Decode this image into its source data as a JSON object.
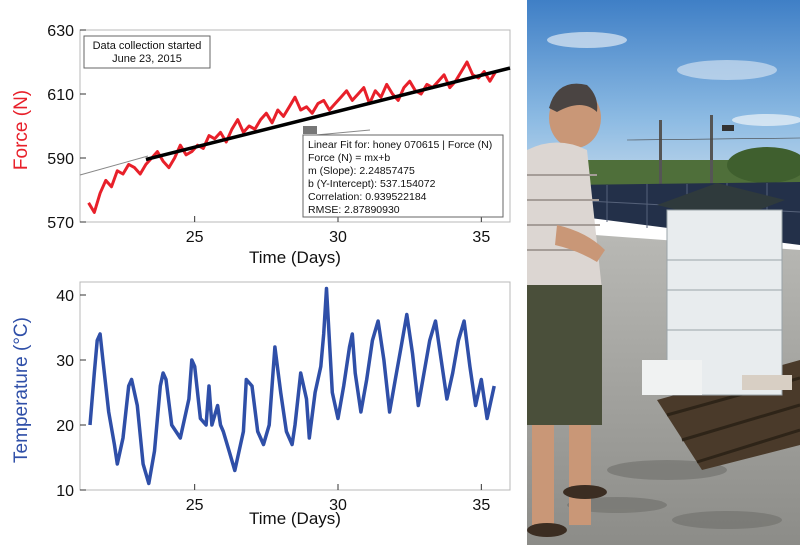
{
  "chart_data": [
    {
      "type": "line",
      "xlabel": "Time (Days)",
      "ylabel": "Force (N)",
      "xlim": [
        21,
        36
      ],
      "ylim": [
        570,
        630
      ],
      "x_ticks": [
        "25",
        "30",
        "35"
      ],
      "y_ticks": [
        "570",
        "590",
        "610",
        "630"
      ],
      "colors": {
        "series": "#e8202a",
        "fit": "#000000",
        "axis_label": "#e8202a"
      },
      "annotation": {
        "line1": "Data collection started",
        "line2": "June 23, 2015"
      },
      "fit_box": {
        "title": "Linear Fit for: honey 070615 | Force (N)",
        "equation": "Force (N) = mx+b",
        "slope": "m (Slope): 2.24857475",
        "intercept": "b (Y-Intercept): 537.154072",
        "correlation": "Correlation: 0.939522184",
        "rmse": "RMSE: 2.87890930"
      },
      "fit": {
        "slope": 2.24857475,
        "intercept": 537.154072,
        "x_start": 23.3,
        "x_end": 36
      },
      "series": [
        {
          "x": [
            21.3,
            21.5,
            21.7,
            21.9,
            22.1,
            22.3,
            22.5,
            22.7,
            22.9,
            23.1,
            23.3,
            23.5,
            23.7,
            23.9,
            24.1,
            24.3,
            24.5,
            24.7,
            24.9,
            25.1,
            25.3,
            25.5,
            25.7,
            25.9,
            26.1,
            26.3,
            26.5,
            26.7,
            26.9,
            27.1,
            27.3,
            27.5,
            27.7,
            27.9,
            28.1,
            28.3,
            28.5,
            28.7,
            28.9,
            29.1,
            29.3,
            29.5,
            29.7,
            29.9,
            30.1,
            30.3,
            30.5,
            30.7,
            30.9,
            31.1,
            31.3,
            31.5,
            31.7,
            31.9,
            32.1,
            32.3,
            32.5,
            32.7,
            32.9,
            33.1,
            33.3,
            33.5,
            33.7,
            33.9,
            34.1,
            34.3,
            34.5,
            34.7,
            34.9,
            35.1,
            35.3,
            35.5
          ],
          "y": [
            576,
            573,
            579,
            583,
            581,
            586,
            585,
            588,
            587,
            585,
            588,
            590,
            592,
            589,
            587,
            590,
            594,
            591,
            592,
            594,
            593,
            597,
            596,
            598,
            595,
            599,
            602,
            598,
            600,
            599,
            602,
            604,
            601,
            605,
            603,
            606,
            609,
            605,
            606,
            604,
            607,
            608,
            605,
            607,
            609,
            611,
            608,
            610,
            612,
            607,
            611,
            609,
            613,
            610,
            608,
            612,
            614,
            611,
            610,
            613,
            612,
            614,
            616,
            612,
            614,
            617,
            620,
            616,
            615,
            617,
            614,
            617
          ]
        }
      ]
    },
    {
      "type": "line",
      "xlabel": "Time (Days)",
      "ylabel": "Temperature (°C)",
      "xlim": [
        21,
        36
      ],
      "ylim": [
        10,
        42
      ],
      "x_ticks": [
        "25",
        "30",
        "35"
      ],
      "y_ticks": [
        "10",
        "20",
        "30",
        "40"
      ],
      "colors": {
        "series": "#2f4fa8",
        "axis_label": "#2f4fa8"
      },
      "series": [
        {
          "x": [
            21.35,
            21.5,
            21.6,
            21.7,
            21.8,
            22.0,
            22.2,
            22.3,
            22.5,
            22.7,
            22.8,
            23.0,
            23.2,
            23.4,
            23.6,
            23.8,
            23.9,
            24.0,
            24.2,
            24.5,
            24.8,
            24.9,
            25.0,
            25.2,
            25.4,
            25.5,
            25.6,
            25.8,
            25.9,
            26.0,
            26.2,
            26.4,
            26.7,
            26.8,
            27.0,
            27.2,
            27.4,
            27.6,
            27.8,
            28.0,
            28.2,
            28.4,
            28.5,
            28.7,
            28.9,
            29.0,
            29.2,
            29.4,
            29.5,
            29.6,
            29.8,
            30.0,
            30.2,
            30.4,
            30.5,
            30.6,
            30.8,
            31.0,
            31.2,
            31.4,
            31.6,
            31.8,
            32.0,
            32.2,
            32.4,
            32.6,
            32.8,
            33.0,
            33.2,
            33.4,
            33.6,
            33.8,
            34.0,
            34.2,
            34.4,
            34.6,
            34.8,
            35.0,
            35.2,
            35.45
          ],
          "y": [
            20,
            28,
            33,
            34,
            30,
            22,
            17,
            14,
            18,
            26,
            27,
            23,
            14,
            11,
            16,
            26,
            28,
            27,
            20,
            18,
            24,
            30,
            29,
            21,
            20,
            26,
            20,
            23,
            20,
            19,
            16,
            13,
            19,
            27,
            26,
            19,
            17,
            20,
            32,
            25,
            19,
            17,
            20,
            28,
            24,
            18,
            25,
            29,
            34,
            41,
            25,
            21,
            26,
            32,
            34,
            28,
            22,
            27,
            33,
            36,
            30,
            22,
            27,
            32,
            37,
            31,
            23,
            28,
            33,
            36,
            30,
            24,
            28,
            33,
            36,
            29,
            23,
            27,
            21,
            26
          ]
        }
      ]
    }
  ]
}
